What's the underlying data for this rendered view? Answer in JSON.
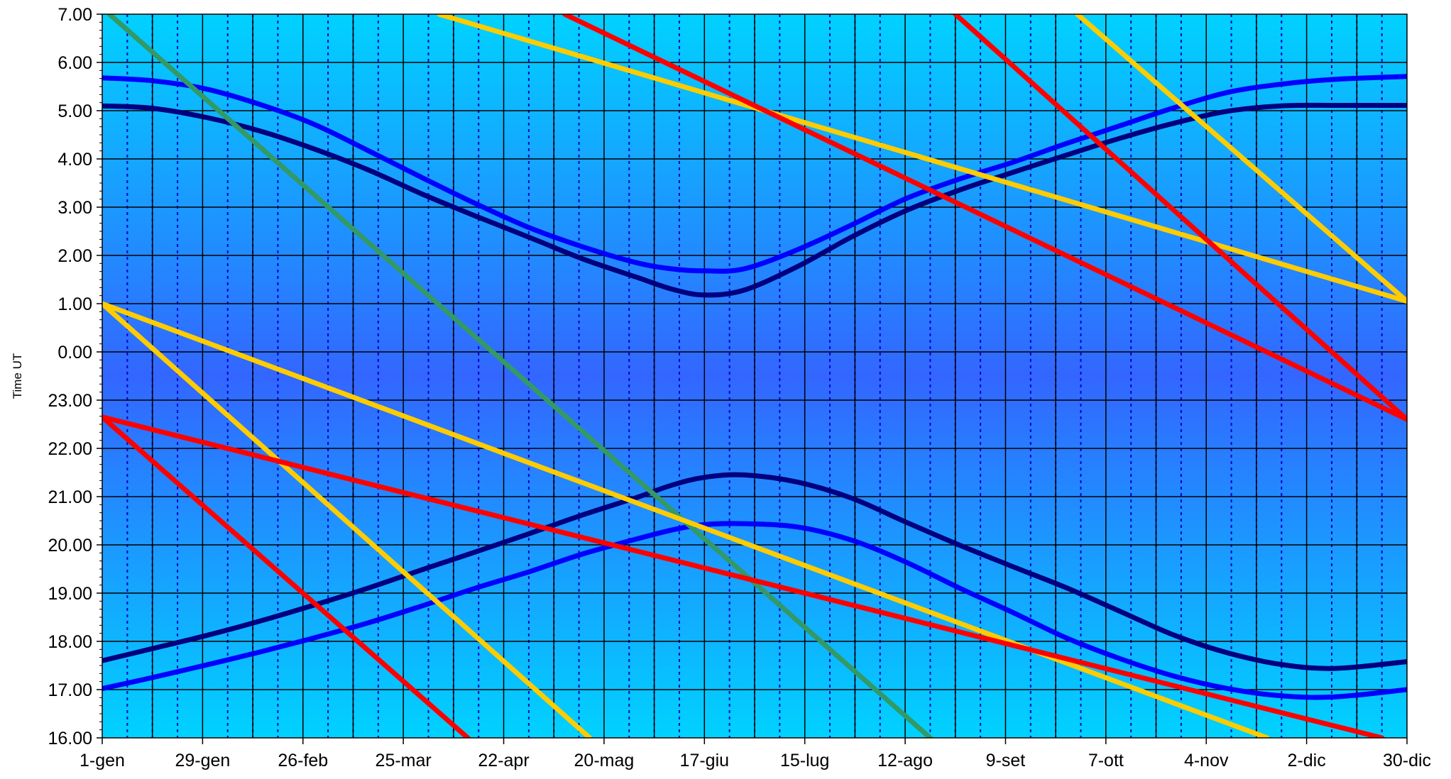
{
  "chart_data": {
    "type": "line",
    "title": "",
    "xlabel": "",
    "ylabel": "Time UT",
    "x_unit": "day of year",
    "xlim": [
      1,
      365
    ],
    "x_ticks": [
      {
        "day": 1,
        "label": "1-gen"
      },
      {
        "day": 29,
        "label": "29-gen"
      },
      {
        "day": 57,
        "label": "26-feb"
      },
      {
        "day": 85,
        "label": "25-mar"
      },
      {
        "day": 113,
        "label": "22-apr"
      },
      {
        "day": 141,
        "label": "20-mag"
      },
      {
        "day": 169,
        "label": "17-giu"
      },
      {
        "day": 197,
        "label": "15-lug"
      },
      {
        "day": 225,
        "label": "12-ago"
      },
      {
        "day": 253,
        "label": "9-set"
      },
      {
        "day": 281,
        "label": "7-ott"
      },
      {
        "day": 309,
        "label": "4-nov"
      },
      {
        "day": 337,
        "label": "2-dic"
      },
      {
        "day": 365,
        "label": "30-dic"
      }
    ],
    "y_ticks": [
      "7.00",
      "6.00",
      "5.00",
      "4.00",
      "3.00",
      "2.00",
      "1.00",
      "0.00",
      "23.00",
      "22.00",
      "21.00",
      "20.00",
      "19.00",
      "18.00",
      "17.00",
      "16.00"
    ],
    "y_range_hours": [
      16,
      31
    ],
    "grid": true,
    "legend": "none",
    "colors": {
      "bg_edge": "#00d2ff",
      "bg_center": "#3366ff",
      "grid_major": "#000000",
      "grid_minor": "#0000cc",
      "dark_blue": "#00007f",
      "blue": "#0000ff",
      "red": "#ff0000",
      "yellow": "#ffcc00",
      "green": "#339966"
    },
    "series": [
      {
        "color_key": "blue",
        "points": [
          [
            1,
            29.68
          ],
          [
            15,
            29.62
          ],
          [
            30,
            29.45
          ],
          [
            45,
            29.13
          ],
          [
            60,
            28.72
          ],
          [
            75,
            28.18
          ],
          [
            90,
            27.62
          ],
          [
            105,
            27.08
          ],
          [
            120,
            26.58
          ],
          [
            135,
            26.18
          ],
          [
            150,
            25.85
          ],
          [
            160,
            25.72
          ],
          [
            169,
            25.68
          ],
          [
            180,
            25.72
          ],
          [
            195,
            26.12
          ],
          [
            210,
            26.63
          ],
          [
            225,
            27.17
          ],
          [
            240,
            27.58
          ],
          [
            255,
            27.93
          ],
          [
            270,
            28.32
          ],
          [
            285,
            28.69
          ],
          [
            300,
            29.06
          ],
          [
            315,
            29.38
          ],
          [
            330,
            29.55
          ],
          [
            345,
            29.65
          ],
          [
            365,
            29.71
          ]
        ]
      },
      {
        "color_key": "dark_blue",
        "points": [
          [
            1,
            29.1
          ],
          [
            15,
            29.05
          ],
          [
            30,
            28.86
          ],
          [
            45,
            28.58
          ],
          [
            60,
            28.21
          ],
          [
            75,
            27.78
          ],
          [
            90,
            27.28
          ],
          [
            105,
            26.82
          ],
          [
            120,
            26.38
          ],
          [
            135,
            25.93
          ],
          [
            150,
            25.55
          ],
          [
            160,
            25.3
          ],
          [
            169,
            25.18
          ],
          [
            180,
            25.28
          ],
          [
            195,
            25.77
          ],
          [
            210,
            26.38
          ],
          [
            225,
            26.92
          ],
          [
            240,
            27.35
          ],
          [
            255,
            27.72
          ],
          [
            270,
            28.08
          ],
          [
            285,
            28.43
          ],
          [
            300,
            28.74
          ],
          [
            315,
            28.99
          ],
          [
            330,
            29.1
          ],
          [
            345,
            29.11
          ],
          [
            365,
            29.11
          ]
        ]
      },
      {
        "color_key": "dark_blue",
        "points": [
          [
            1,
            17.6
          ],
          [
            15,
            17.85
          ],
          [
            30,
            18.12
          ],
          [
            45,
            18.42
          ],
          [
            60,
            18.75
          ],
          [
            75,
            19.1
          ],
          [
            90,
            19.48
          ],
          [
            105,
            19.85
          ],
          [
            120,
            20.23
          ],
          [
            135,
            20.62
          ],
          [
            150,
            20.98
          ],
          [
            160,
            21.24
          ],
          [
            169,
            21.4
          ],
          [
            180,
            21.45
          ],
          [
            195,
            21.3
          ],
          [
            210,
            20.97
          ],
          [
            225,
            20.48
          ],
          [
            240,
            20.0
          ],
          [
            255,
            19.55
          ],
          [
            270,
            19.11
          ],
          [
            285,
            18.62
          ],
          [
            300,
            18.13
          ],
          [
            315,
            17.76
          ],
          [
            330,
            17.52
          ],
          [
            345,
            17.44
          ],
          [
            365,
            17.58
          ]
        ]
      },
      {
        "color_key": "blue",
        "points": [
          [
            1,
            17.02
          ],
          [
            15,
            17.25
          ],
          [
            30,
            17.51
          ],
          [
            45,
            17.78
          ],
          [
            60,
            18.07
          ],
          [
            75,
            18.38
          ],
          [
            90,
            18.73
          ],
          [
            105,
            19.1
          ],
          [
            120,
            19.44
          ],
          [
            135,
            19.81
          ],
          [
            150,
            20.12
          ],
          [
            160,
            20.31
          ],
          [
            169,
            20.42
          ],
          [
            180,
            20.44
          ],
          [
            195,
            20.37
          ],
          [
            210,
            20.1
          ],
          [
            225,
            19.65
          ],
          [
            240,
            19.11
          ],
          [
            255,
            18.6
          ],
          [
            270,
            18.07
          ],
          [
            285,
            17.64
          ],
          [
            300,
            17.28
          ],
          [
            315,
            17.02
          ],
          [
            330,
            16.87
          ],
          [
            345,
            16.85
          ],
          [
            365,
            17.0
          ]
        ]
      },
      {
        "color_key": "green",
        "points": [
          [
            3,
            31.0
          ],
          [
            232,
            16.0
          ]
        ]
      },
      {
        "color_key": "yellow",
        "points": [
          [
            95,
            31.0
          ],
          [
            365,
            25.05
          ]
        ]
      },
      {
        "color_key": "yellow",
        "points": [
          [
            1,
            25.0
          ],
          [
            137,
            16.0
          ]
        ]
      },
      {
        "color_key": "yellow",
        "points": [
          [
            273,
            31.0
          ],
          [
            365,
            25.05
          ]
        ]
      },
      {
        "color_key": "yellow",
        "points": [
          [
            1,
            25.0
          ],
          [
            326,
            16.0
          ]
        ]
      },
      {
        "color_key": "red",
        "points": [
          [
            130,
            31.0
          ],
          [
            365,
            22.6
          ]
        ]
      },
      {
        "color_key": "red",
        "points": [
          [
            1,
            22.65
          ],
          [
            103,
            16.0
          ]
        ]
      },
      {
        "color_key": "red",
        "points": [
          [
            239,
            31.0
          ],
          [
            365,
            22.6
          ]
        ]
      },
      {
        "color_key": "red",
        "points": [
          [
            1,
            22.65
          ],
          [
            358,
            16.0
          ]
        ]
      }
    ]
  }
}
